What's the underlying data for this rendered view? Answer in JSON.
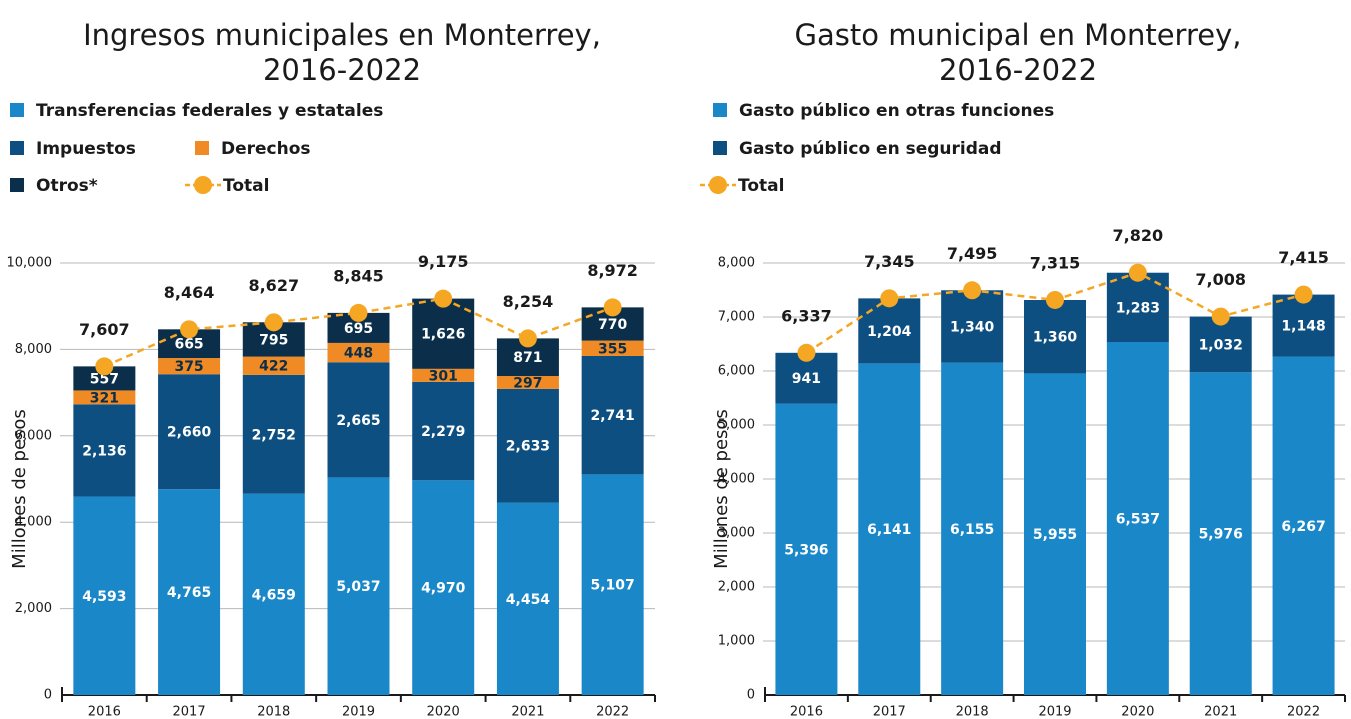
{
  "chart_data": [
    {
      "type": "bar",
      "stacked": true,
      "title": [
        "Ingresos municipales en Monterrey,",
        "2016-2022"
      ],
      "ylabel": "Millones de pesos",
      "categories": [
        "2016",
        "2017",
        "2018",
        "2019",
        "2020",
        "2021",
        "2022"
      ],
      "ylim": [
        0,
        10000
      ],
      "yticks": [
        0,
        {
          "value": 2000,
          "label": "2,000"
        },
        {
          "value": 4000,
          "label": "4,000"
        },
        {
          "value": 6000,
          "label": "6,000"
        },
        {
          "value": 8000,
          "label": "8,000"
        },
        {
          "value": 10000,
          "label": "10,000"
        }
      ],
      "grid": true,
      "series": [
        {
          "name": "Transferencias federales y estatales",
          "color": "#1a87c9",
          "label_color": "#ffffff",
          "values": [
            4593,
            4765,
            4659,
            5037,
            4970,
            4454,
            5107
          ],
          "value_labels": [
            "4,593",
            "4,765",
            "4,659",
            "5,037",
            "4,970",
            "4,454",
            "5,107"
          ]
        },
        {
          "name": "Impuestos",
          "color": "#0e4f82",
          "label_color": "#ffffff",
          "values": [
            2136,
            2660,
            2752,
            2665,
            2279,
            2633,
            2741
          ],
          "value_labels": [
            "2,136",
            "2,660",
            "2,752",
            "2,665",
            "2,279",
            "2,633",
            "2,741"
          ]
        },
        {
          "name": "Derechos",
          "color": "#f08a24",
          "label_color": "#0b2f4a",
          "values": [
            321,
            375,
            422,
            448,
            301,
            297,
            355
          ]
        },
        {
          "name": "Otros*",
          "color": "#0b2f4a",
          "label_color": "#ffffff",
          "values": [
            557,
            665,
            795,
            695,
            1626,
            871,
            770
          ],
          "value_labels": [
            "557",
            "665",
            "795",
            "695",
            "1,626",
            "871",
            "770"
          ]
        }
      ],
      "total": {
        "name": "Total",
        "color": "#f5a623",
        "values": [
          7607,
          8464,
          8627,
          8845,
          9175,
          8254,
          8972
        ],
        "value_labels": [
          "7,607",
          "8,464",
          "8,627",
          "8,845",
          "9,175",
          "8,254",
          "8,972"
        ]
      }
    },
    {
      "type": "bar",
      "stacked": true,
      "title": [
        "Gasto municipal en Monterrey,",
        "2016-2022"
      ],
      "ylabel": "Millones de pesos",
      "categories": [
        "2016",
        "2017",
        "2018",
        "2019",
        "2020",
        "2021",
        "2022"
      ],
      "ylim": [
        0,
        8000
      ],
      "yticks": [
        0,
        {
          "value": 1000,
          "label": "1,000"
        },
        {
          "value": 2000,
          "label": "2,000"
        },
        {
          "value": 3000,
          "label": "3,000"
        },
        {
          "value": 4000,
          "label": "4,000"
        },
        {
          "value": 5000,
          "label": "5,000"
        },
        {
          "value": 6000,
          "label": "6,000"
        },
        {
          "value": 7000,
          "label": "7,000"
        },
        {
          "value": 8000,
          "label": "8,000"
        }
      ],
      "grid": true,
      "series": [
        {
          "name": "Gasto público en otras funciones",
          "color": "#1a87c9",
          "label_color": "#ffffff",
          "values": [
            5396,
            6141,
            6155,
            5955,
            6537,
            5976,
            6267
          ],
          "value_labels": [
            "5,396",
            "6,141",
            "6,155",
            "5,955",
            "6,537",
            "5,976",
            "6,267"
          ]
        },
        {
          "name": "Gasto público en seguridad",
          "color": "#0e4f82",
          "label_color": "#ffffff",
          "values": [
            941,
            1204,
            1340,
            1360,
            1283,
            1032,
            1148
          ],
          "value_labels": [
            "941",
            "1,204",
            "1,340",
            "1,360",
            "1,283",
            "1,032",
            "1,148"
          ]
        }
      ],
      "total": {
        "name": "Total",
        "color": "#f5a623",
        "values": [
          6337,
          7345,
          7495,
          7315,
          7820,
          7008,
          7415
        ],
        "value_labels": [
          "6,337",
          "7,345",
          "7,495",
          "7,315",
          "7,820",
          "7,008",
          "7,415"
        ]
      }
    }
  ]
}
